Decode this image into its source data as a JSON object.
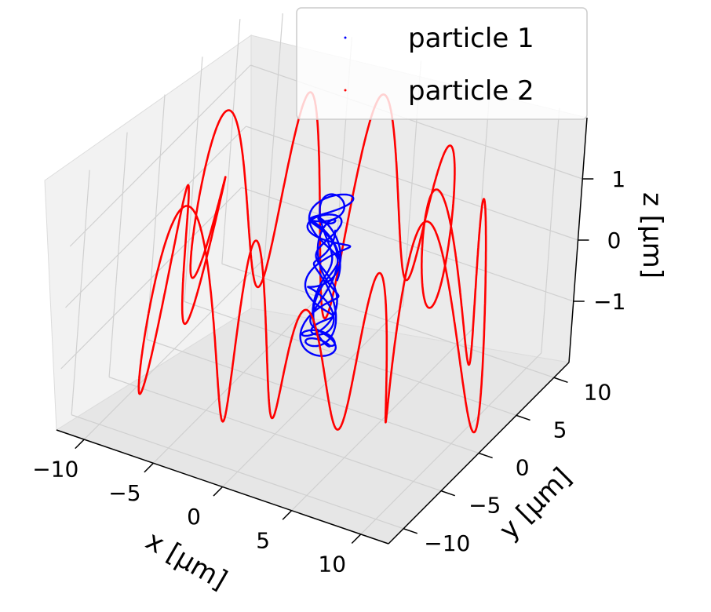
{
  "chart_data": {
    "type": "line",
    "projection": "3d",
    "title": "",
    "xlabel": "x [μm]",
    "ylabel": "y [μm]",
    "zlabel": "z [μm]",
    "xlim": [
      -12,
      12
    ],
    "ylim": [
      -12,
      12
    ],
    "zlim": [
      -2,
      2
    ],
    "x_ticks": [
      "−10",
      "−5",
      "0",
      "5",
      "10"
    ],
    "y_ticks": [
      "−10",
      "−5",
      "0",
      "5",
      "10"
    ],
    "z_ticks": [
      "−1",
      "0",
      "1"
    ],
    "grid": true,
    "legend": {
      "position": "top-right",
      "entries": [
        "particle 1",
        "particle 2"
      ]
    },
    "series": [
      {
        "name": "particle 1",
        "color": "#0000ff",
        "shape": "helical trajectory around the z axis",
        "radius_range_um": [
          0.5,
          1.3
        ],
        "z_range_um": [
          -1.3,
          1.3
        ]
      },
      {
        "name": "particle 2",
        "color": "#ff0000",
        "shape": "looping trajectory around the z axis",
        "radius_range_um": [
          5,
          12
        ],
        "z_range_um": [
          -1.9,
          1.9
        ]
      }
    ]
  }
}
